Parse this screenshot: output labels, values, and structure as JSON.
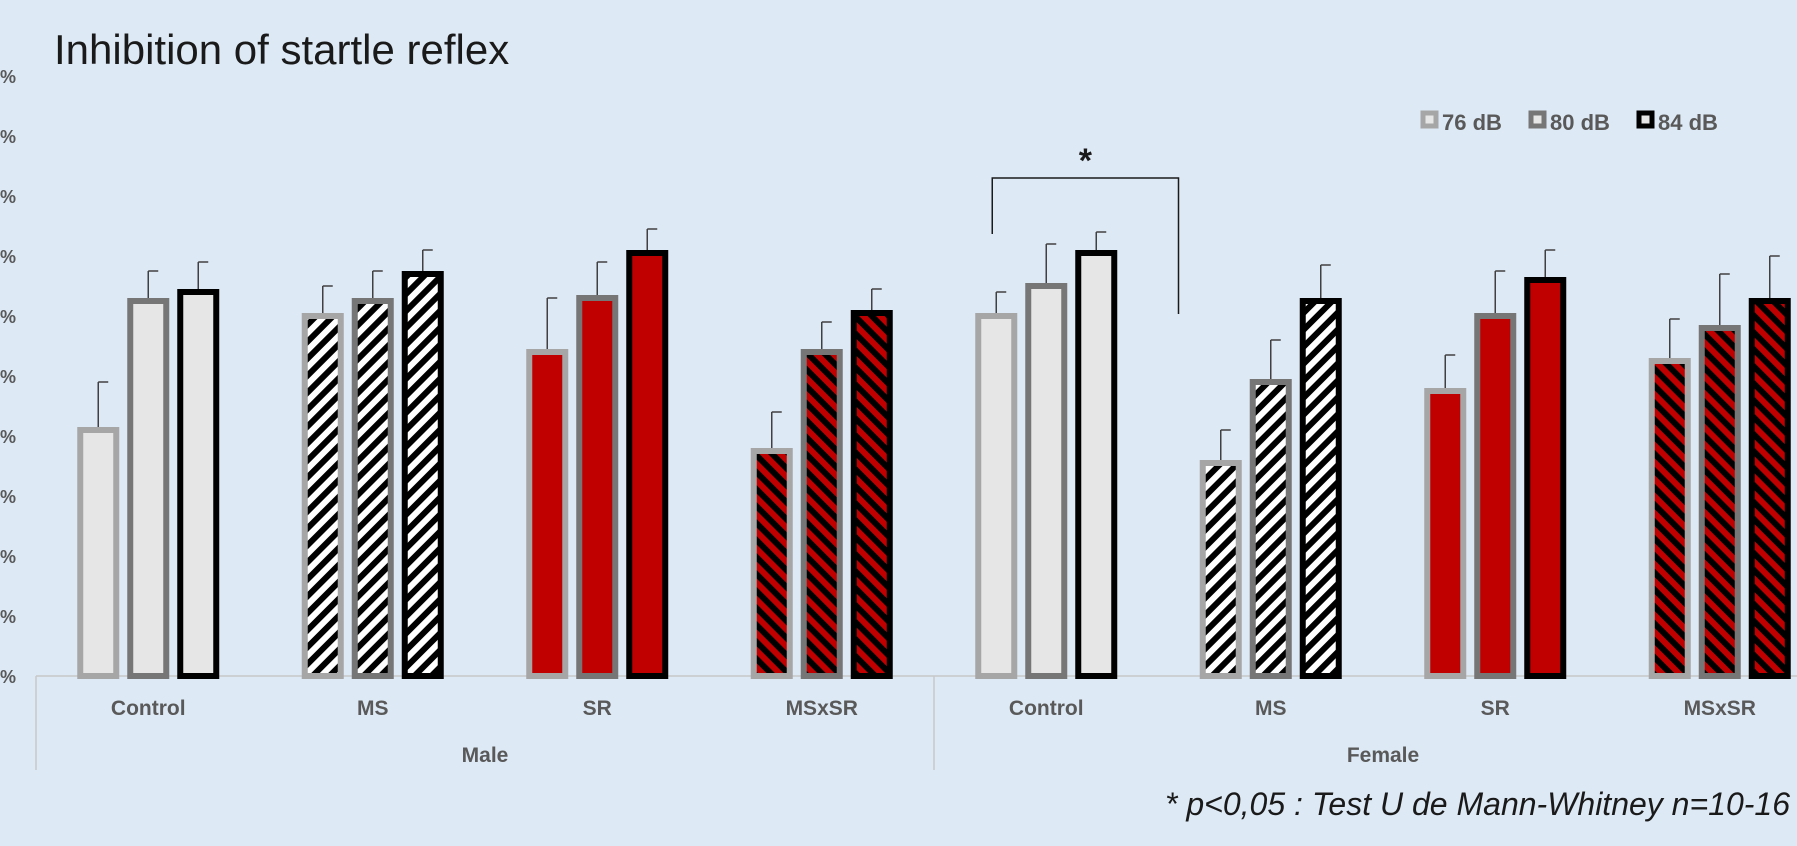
{
  "chart_data": {
    "type": "bar",
    "title": "Inhibition of startle reflex",
    "footnote": "* p<0,05 : Test U de Mann-Whitney n=10-16",
    "significance_marker": "*",
    "ytick_labels": [
      "%",
      "%",
      "%",
      "%",
      "%",
      "%",
      "%",
      "%",
      "%",
      "%",
      "%"
    ],
    "ylim": [
      0,
      100
    ],
    "groups": [
      {
        "name": "Male",
        "categories": [
          "Control",
          "MS",
          "SR",
          "MSxSR"
        ]
      },
      {
        "name": "Female",
        "categories": [
          "Control",
          "MS",
          "SR",
          "MSxSR"
        ]
      }
    ],
    "categories": [
      "Control",
      "MS",
      "SR",
      "MSxSR",
      "Control",
      "MS",
      "SR",
      "MSxSR"
    ],
    "treatment_fills": [
      "plain",
      "hatch-bw",
      "solid-red",
      "hatch-red",
      "plain",
      "hatch-bw",
      "solid-red",
      "hatch-red"
    ],
    "series": [
      {
        "name": "76 dB",
        "border_color": "#a6a6a6",
        "values": [
          41.5,
          60.5,
          54.5,
          38,
          60.5,
          36,
          48,
          53
        ],
        "errors": [
          7.5,
          4.5,
          8.5,
          6,
          3.5,
          5,
          5.5,
          6.5
        ]
      },
      {
        "name": "80 dB",
        "border_color": "#767676",
        "values": [
          63,
          63,
          63.5,
          54.5,
          65.5,
          49.5,
          60.5,
          58.5
        ],
        "errors": [
          4.5,
          4.5,
          5.5,
          4.5,
          6.5,
          6.5,
          7,
          8.5
        ]
      },
      {
        "name": "84 dB",
        "border_color": "#000000",
        "values": [
          64.5,
          67.5,
          71,
          61,
          71,
          63,
          66.5,
          63
        ],
        "errors": [
          4.5,
          3.5,
          3.5,
          3.5,
          3,
          5.5,
          4.5,
          7
        ]
      }
    ],
    "colors": {
      "plain_fill": "#e6e6e6",
      "red_fill": "#c00000",
      "hatch_light": "#ffffff",
      "hatch_dark": "#000000"
    },
    "significance": {
      "from_category": 4,
      "to_category": 5
    },
    "legend_position": "top-right",
    "grid": false
  }
}
